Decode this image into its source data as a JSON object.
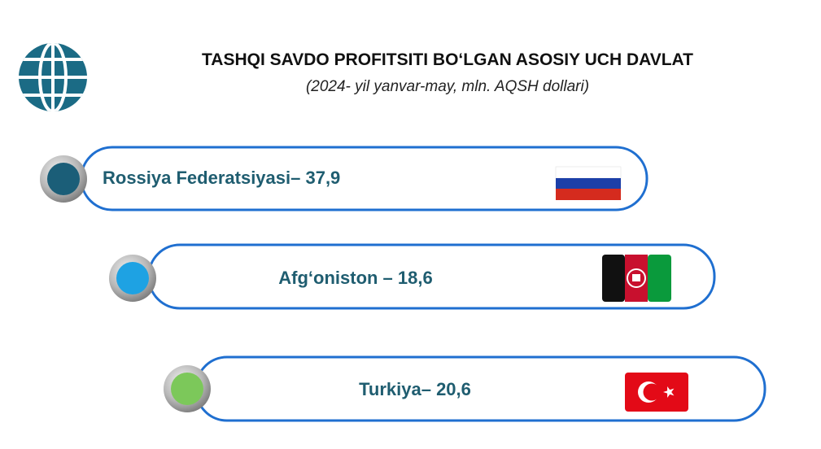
{
  "header": {
    "title": "TASHQI SAVDO PROFITSITI BO‘LGAN ASOSIY UCH DAVLAT",
    "subtitle": "(2024- yil yanvar-may, mln. AQSH dollari)"
  },
  "items": [
    {
      "label": "Rossiya Federatsiyasi– 37,9"
    },
    {
      "label": "Afg‘oniston – 18,6"
    },
    {
      "label": "Turkiya– 20,6"
    }
  ]
}
